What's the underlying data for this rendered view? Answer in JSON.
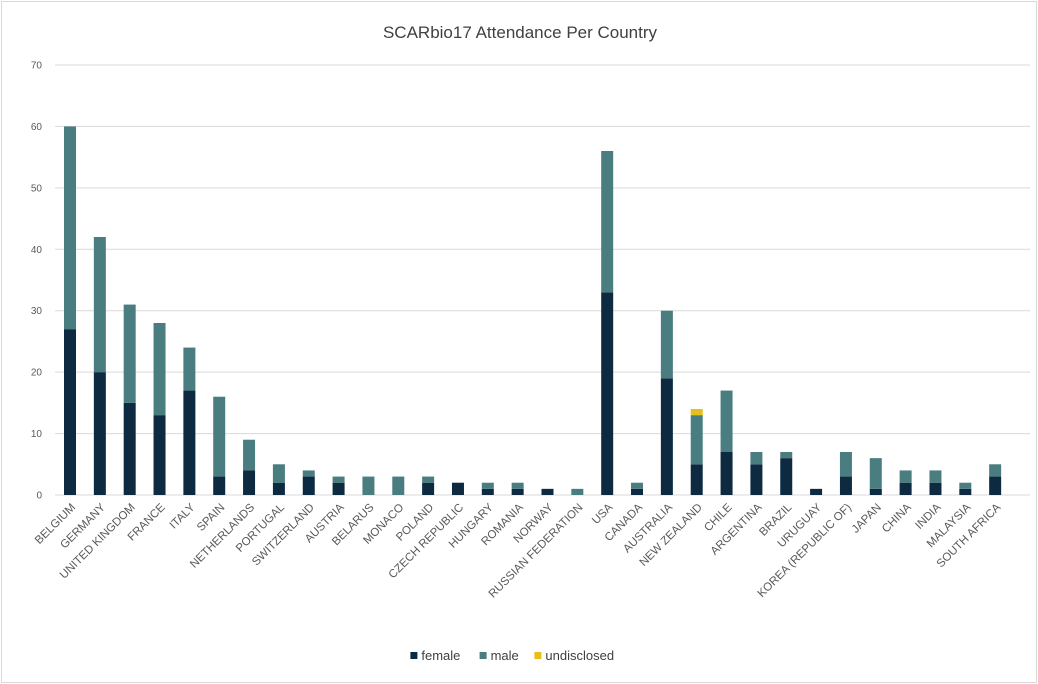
{
  "chart_data": {
    "type": "bar",
    "stacked": true,
    "title": "SCARbio17  Attendance Per Country",
    "xlabel": "",
    "ylabel": "",
    "ylim": [
      0,
      70
    ],
    "yticks": [
      0,
      10,
      20,
      30,
      40,
      50,
      60,
      70
    ],
    "grid": true,
    "legend_position": "bottom",
    "categories": [
      "BELGIUM",
      "GERMANY",
      "UNITED KINGDOM",
      "FRANCE",
      "ITALY",
      "SPAIN",
      "NETHERLANDS",
      "PORTUGAL",
      "SWITZERLAND",
      "AUSTRIA",
      "BELARUS",
      "MONACO",
      "POLAND",
      "CZECH REPUBLIC",
      "HUNGARY",
      "ROMANIA",
      "NORWAY",
      "RUSSIAN FEDERATION",
      "USA",
      "CANADA",
      "AUSTRALIA",
      "NEW ZEALAND",
      "CHILE",
      "ARGENTINA",
      "BRAZIL",
      "URUGUAY",
      "KOREA (REPUBLIC OF)",
      "JAPAN",
      "CHINA",
      "INDIA",
      "MALAYSIA",
      "SOUTH AFRICA"
    ],
    "series": [
      {
        "name": "female",
        "color": "#0d2a40",
        "values": [
          27,
          20,
          15,
          13,
          17,
          3,
          4,
          2,
          3,
          2,
          0,
          0,
          2,
          2,
          1,
          1,
          1,
          0,
          33,
          1,
          19,
          5,
          7,
          5,
          6,
          1,
          3,
          1,
          2,
          2,
          1,
          3
        ]
      },
      {
        "name": "male",
        "color": "#4a7d80",
        "values": [
          33,
          22,
          16,
          15,
          7,
          13,
          5,
          3,
          1,
          1,
          3,
          3,
          1,
          0,
          1,
          1,
          0,
          1,
          23,
          1,
          11,
          8,
          10,
          2,
          1,
          0,
          4,
          5,
          2,
          2,
          1,
          2
        ]
      },
      {
        "name": "undisclosed",
        "color": "#e6c01a",
        "values": [
          0,
          0,
          0,
          0,
          0,
          0,
          0,
          0,
          0,
          0,
          0,
          0,
          0,
          0,
          0,
          0,
          0,
          0,
          0,
          0,
          0,
          1,
          0,
          0,
          0,
          0,
          0,
          0,
          0,
          0,
          0,
          0
        ]
      }
    ]
  }
}
